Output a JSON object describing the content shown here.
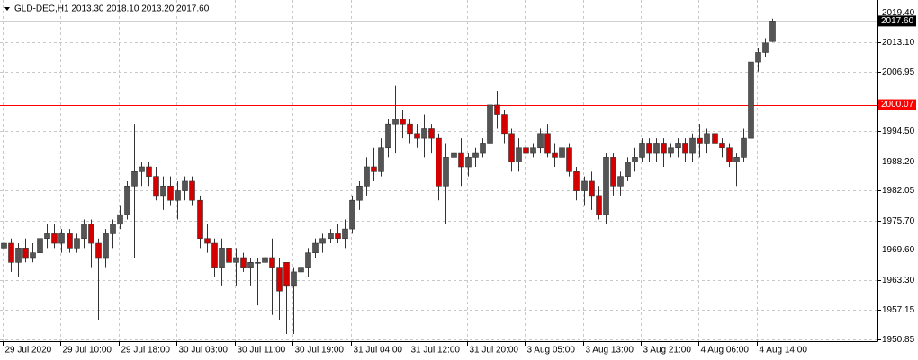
{
  "chart_data": {
    "type": "candlestick",
    "title": "GLD-DEC,H1  2013.30 2018.10 2013.20 2017.60",
    "categories": [
      "29 Jul 2020",
      null,
      null,
      null,
      null,
      null,
      null,
      null,
      "29 Jul 10:00",
      null,
      null,
      null,
      null,
      null,
      null,
      null,
      "29 Jul 18:00",
      null,
      null,
      null,
      null,
      null,
      null,
      null,
      "30 Jul 03:00",
      null,
      null,
      null,
      null,
      null,
      null,
      null,
      "30 Jul 11:00",
      null,
      null,
      null,
      null,
      null,
      null,
      null,
      "30 Jul 19:00",
      null,
      null,
      null,
      null,
      null,
      null,
      null,
      "31 Jul 04:00",
      null,
      null,
      null,
      null,
      null,
      null,
      null,
      "31 Jul 12:00",
      null,
      null,
      null,
      null,
      null,
      null,
      null,
      "31 Jul 20:00",
      null,
      null,
      null,
      null,
      null,
      null,
      null,
      "3 Aug 05:00",
      null,
      null,
      null,
      null,
      null,
      null,
      null,
      "3 Aug 13:00",
      null,
      null,
      null,
      null,
      null,
      null,
      null,
      "3 Aug 21:00",
      null,
      null,
      null,
      null,
      null,
      null,
      null,
      "4 Aug 06:00",
      null,
      null,
      null,
      null,
      null,
      null,
      null,
      "4 Aug 14:00",
      null,
      null
    ],
    "open": [
      1970,
      1971,
      1967,
      1970,
      1968,
      1969,
      1972,
      1973,
      1971,
      1973,
      1970,
      1972,
      1975,
      1971,
      1968,
      1973,
      1975,
      1977,
      1983,
      1986,
      1987,
      1985,
      1981,
      1983,
      1980,
      1982,
      1984,
      1980,
      1972,
      1971,
      1966,
      1970,
      1967,
      1968,
      1966,
      1967,
      1967,
      1968,
      1966,
      1967,
      1962,
      1965,
      1966,
      1969,
      1971,
      1972,
      1973,
      1972,
      1974,
      1980,
      1983,
      1987,
      1986,
      1991,
      1996,
      1997,
      1996,
      1994,
      1993,
      1995,
      1993,
      1983,
      1989,
      1990,
      1987,
      1989,
      1990,
      1992,
      2000,
      1998,
      1994,
      1988,
      1991,
      1990,
      1991,
      1994,
      1990,
      1989,
      1991,
      1986,
      1982,
      1984,
      1981,
      1977,
      1989,
      1983,
      1985,
      1988,
      1989,
      1992,
      1990,
      1992,
      1990,
      1991,
      1992,
      1990,
      1993,
      1992,
      1994,
      1992,
      1991,
      1988,
      1989,
      1993,
      2009,
      2011,
      2013.3
    ],
    "high": [
      1974,
      1972,
      1971,
      1972,
      1971,
      1974,
      1975,
      1975,
      1974,
      1974,
      1973,
      1976,
      1976,
      1972,
      1974,
      1976,
      1979,
      1984,
      1996,
      1988,
      1988,
      1987,
      1985,
      1985,
      1984,
      1985,
      1985,
      1981,
      1975,
      1972,
      1972,
      1971,
      1970,
      1969,
      1968,
      1968,
      1969,
      1972,
      1968,
      1967,
      1966,
      1967,
      1970,
      1972,
      1973,
      1974,
      1975,
      1976,
      1981,
      1984,
      1989,
      1991,
      1993,
      1997,
      2004,
      1999,
      1997,
      1996,
      1998,
      1996,
      1994,
      1992,
      1991,
      1993,
      1990,
      1991,
      1993,
      2006,
      2003,
      1999,
      1995,
      1993,
      1993,
      1992,
      1995,
      1996,
      1992,
      1992,
      1992,
      1987,
      1985,
      1986,
      1983,
      1990,
      1990,
      1986,
      1989,
      1991,
      1993,
      1993,
      1993,
      1993,
      1992,
      1993,
      1993,
      1994,
      1996,
      1995,
      1995,
      1993,
      1992,
      1990,
      1995,
      2010,
      2012,
      2014,
      2018.1
    ],
    "low": [
      1966,
      1965,
      1964,
      1967,
      1967,
      1968,
      1970,
      1970,
      1969,
      1969,
      1969,
      1970,
      1966,
      1955,
      1966,
      1970,
      1974,
      1976,
      1968,
      1983,
      1983,
      1980,
      1978,
      1979,
      1976,
      1980,
      1979,
      1970,
      1969,
      1964,
      1962,
      1965,
      1962,
      1965,
      1962,
      1958,
      1965,
      1956,
      1955,
      1952,
      1952,
      1962,
      1964,
      1968,
      1969,
      1971,
      1971,
      1970,
      1973,
      1978,
      1981,
      1984,
      1985,
      1989,
      1990,
      1993,
      1992,
      1991,
      1989,
      1990,
      1980,
      1975,
      1982,
      1983,
      1985,
      1987,
      1989,
      1990,
      1995,
      1992,
      1986,
      1986,
      1989,
      1989,
      1990,
      1989,
      1987,
      1988,
      1985,
      1980,
      1979,
      1978,
      1976,
      1975,
      1981,
      1981,
      1984,
      1986,
      1988,
      1988,
      1988,
      1987,
      1989,
      1989,
      1988,
      1988,
      1989,
      1990,
      1991,
      1989,
      1987,
      1983,
      1988,
      1992,
      2007,
      2010,
      2013.2
    ],
    "close": [
      1971,
      1967,
      1970,
      1968,
      1969,
      1972,
      1973,
      1971,
      1973,
      1970,
      1972,
      1975,
      1971,
      1968,
      1973,
      1975,
      1977,
      1983,
      1986,
      1987,
      1985,
      1981,
      1983,
      1980,
      1982,
      1984,
      1980,
      1972,
      1971,
      1966,
      1970,
      1967,
      1968,
      1966,
      1967,
      1967,
      1968,
      1966,
      1961,
      1962,
      1965,
      1966,
      1969,
      1971,
      1972,
      1973,
      1972,
      1974,
      1980,
      1983,
      1987,
      1986,
      1991,
      1996,
      1997,
      1996,
      1994,
      1993,
      1995,
      1993,
      1983,
      1989,
      1990,
      1987,
      1989,
      1990,
      1992,
      2000,
      1998,
      1994,
      1988,
      1991,
      1990,
      1991,
      1994,
      1990,
      1989,
      1991,
      1986,
      1982,
      1984,
      1981,
      1977,
      1989,
      1983,
      1985,
      1988,
      1989,
      1992,
      1990,
      1992,
      1990,
      1991,
      1992,
      1990,
      1993,
      1992,
      1994,
      1992,
      1991,
      1988,
      1989,
      1993,
      2009,
      2011,
      2013,
      2017.6
    ],
    "up_color": "#555555",
    "down_color": "#d40000",
    "ylim": [
      1950.5,
      2022.0
    ],
    "yticks": [
      {
        "value": 2019.4,
        "label": "2019.40"
      },
      {
        "value": 2013.1,
        "label": "2013.10"
      },
      2006.95,
      {
        "value": 1994.5,
        "label": "1994.50"
      },
      {
        "value": 1988.2,
        "label": "1988.20"
      },
      1982.05,
      {
        "value": 1975.7,
        "label": "1975.70"
      },
      {
        "value": 1969.6,
        "label": "1969.60"
      },
      {
        "value": 1963.3,
        "label": "1963.30"
      },
      1957.15,
      1950.85
    ],
    "grid": true,
    "current_price": {
      "value": 2017.6,
      "label": "2017.60"
    },
    "level_line": {
      "value": 2000.07,
      "color": "#ff0000"
    }
  }
}
